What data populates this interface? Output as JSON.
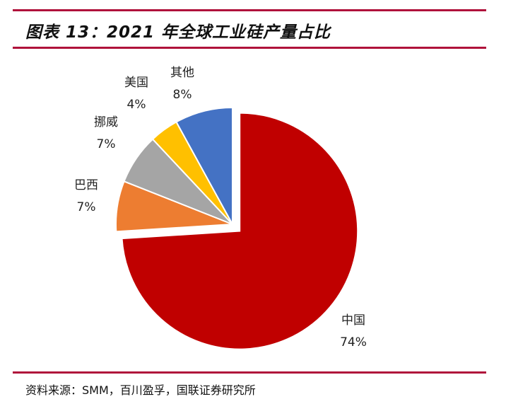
{
  "title": "图表 13：2021 年全球工业硅产量占比",
  "source": "资料来源：SMM，百川盈孚，国联证券研究所",
  "chart_data": {
    "type": "pie",
    "title": "2021 年全球工业硅产量占比",
    "slices": [
      {
        "name": "中国",
        "value": 74,
        "label": "74%",
        "color": "#C00000",
        "exploded": true
      },
      {
        "name": "巴西",
        "value": 7,
        "label": "7%",
        "color": "#ED7D31"
      },
      {
        "name": "挪威",
        "value": 7,
        "label": "7%",
        "color": "#A5A5A5"
      },
      {
        "name": "美国",
        "value": 4,
        "label": "4%",
        "color": "#FFC000"
      },
      {
        "name": "其他",
        "value": 8,
        "label": "8%",
        "color": "#4472C4"
      }
    ]
  }
}
